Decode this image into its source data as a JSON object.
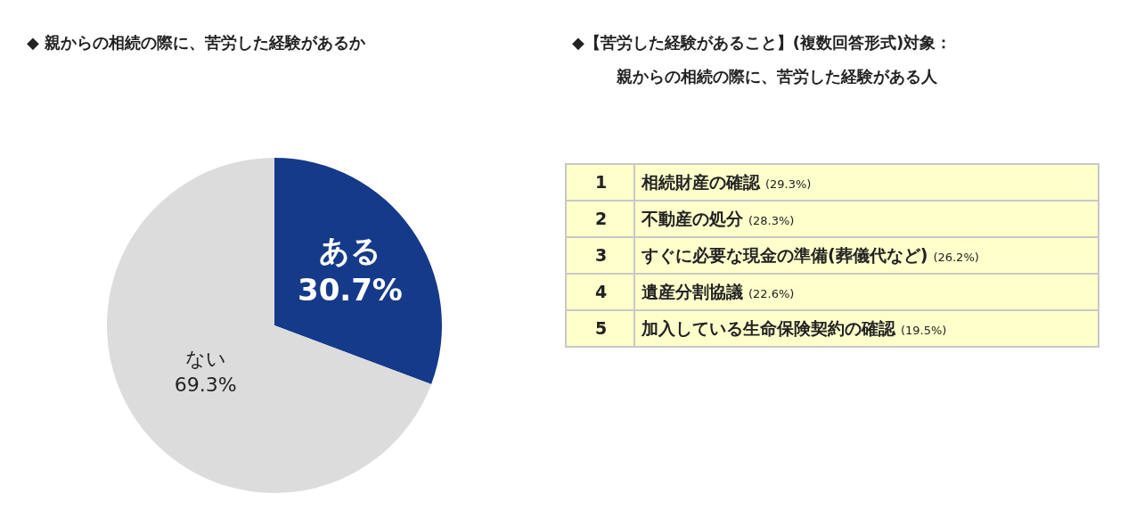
{
  "chart_data": [
    {
      "type": "pie",
      "title": "◆ 親からの相続の際に、苦労した経験があるか",
      "categories": [
        "ある",
        "ない"
      ],
      "values": [
        30.7,
        69.3
      ],
      "colors": [
        "#163a8a",
        "#dcdcdc"
      ],
      "value_labels": [
        "30.7%",
        "69.3%"
      ],
      "legend": false
    },
    {
      "type": "other",
      "title": "◆【苦労した経験があること】(複数回答形式)対象：",
      "subtitle": "親からの相続の際に、苦労した経験がある人",
      "annotations": [
        "1",
        "相続財産の確認",
        "(29.3%)",
        "2",
        "不動産の処分",
        "(28.3%)",
        "3",
        "すぐに必要な現金の準備(葬儀代など)",
        "(26.2%)",
        "4",
        "遺産分割協議",
        "(22.6%)",
        "5",
        "加入している生命保険契約の確認",
        "(19.5%)"
      ]
    }
  ]
}
